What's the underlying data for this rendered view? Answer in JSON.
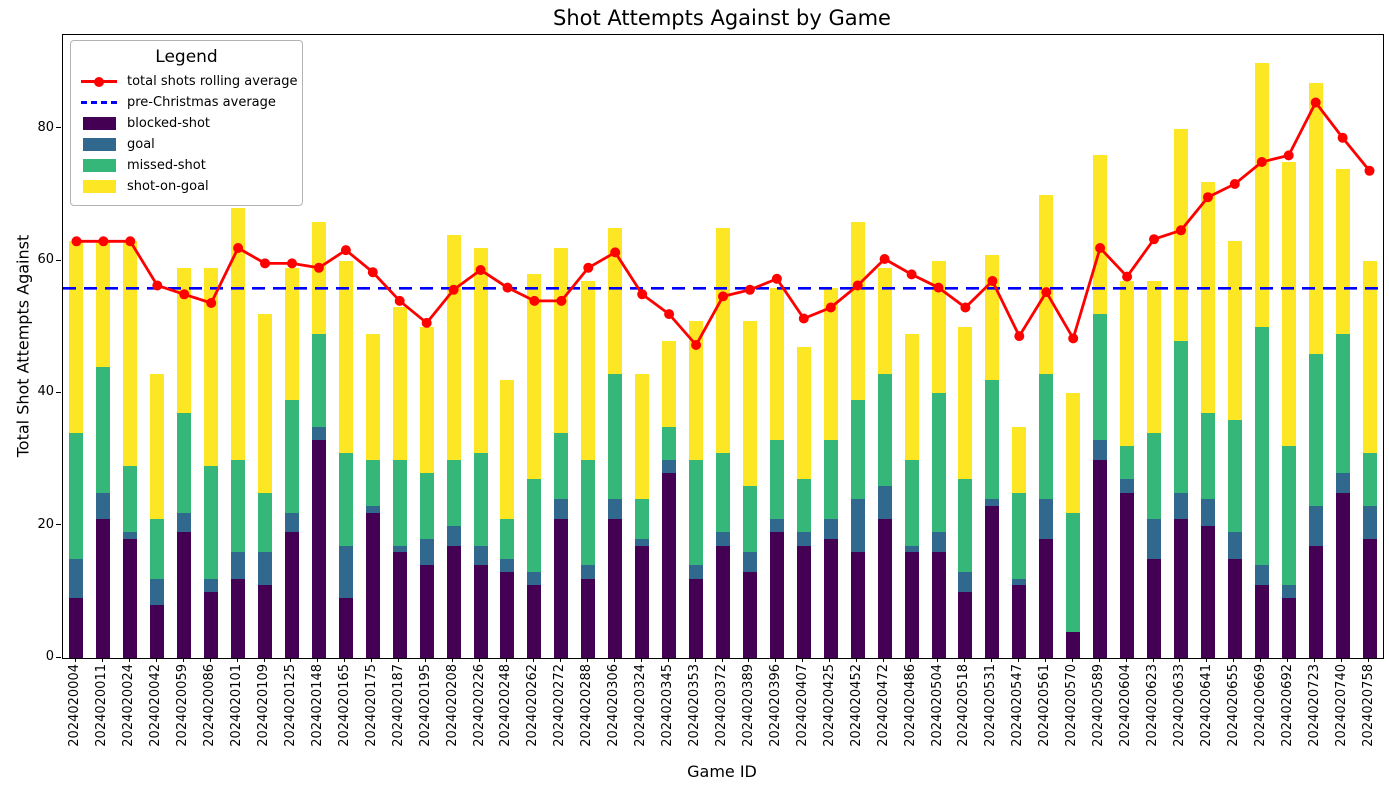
{
  "title": "Shot Attempts Against by Game",
  "legend": {
    "title": "Legend",
    "entries": [
      {
        "label": "total shots rolling average",
        "type": "line-marker",
        "color": "#ff0000"
      },
      {
        "label": "pre-Christmas average",
        "type": "dashed-line",
        "color": "#0000ff"
      },
      {
        "label": "blocked-shot",
        "type": "patch",
        "color": "#440154"
      },
      {
        "label": "goal",
        "type": "patch",
        "color": "#31688e"
      },
      {
        "label": "missed-shot",
        "type": "patch",
        "color": "#35b779"
      },
      {
        "label": "shot-on-goal",
        "type": "patch",
        "color": "#fde725"
      }
    ]
  },
  "chart_data": {
    "type": "bar",
    "stacked": true,
    "title": "Shot Attempts Against by Game",
    "xlabel": "Game ID",
    "ylabel": "Total Shot Attempts Against",
    "ylim": [
      0,
      94.2
    ],
    "yticks": [
      0,
      20,
      40,
      60,
      80
    ],
    "grid": false,
    "legend_position": "upper left",
    "categories": [
      "2024020004",
      "2024020011",
      "2024020024",
      "2024020042",
      "2024020059",
      "2024020086",
      "2024020101",
      "2024020109",
      "2024020125",
      "2024020148",
      "2024020165",
      "2024020175",
      "2024020187",
      "2024020195",
      "2024020208",
      "2024020226",
      "2024020248",
      "2024020262",
      "2024020272",
      "2024020288",
      "2024020306",
      "2024020324",
      "2024020345",
      "2024020353",
      "2024020372",
      "2024020389",
      "2024020396",
      "2024020407",
      "2024020425",
      "2024020452",
      "2024020472",
      "2024020486",
      "2024020504",
      "2024020518",
      "2024020531",
      "2024020547",
      "2024020561",
      "2024020570",
      "2024020589",
      "2024020604",
      "2024020623",
      "2024020633",
      "2024020641",
      "2024020655",
      "2024020669",
      "2024020692",
      "2024020723",
      "2024020740",
      "2024020758"
    ],
    "series": [
      {
        "name": "blocked-shot",
        "color": "#440154",
        "values": [
          9,
          21,
          18,
          8,
          19,
          10,
          12,
          11,
          19,
          33,
          9,
          22,
          16,
          14,
          17,
          14,
          13,
          11,
          21,
          12,
          21,
          17,
          28,
          12,
          17,
          13,
          19,
          17,
          18,
          16,
          21,
          16,
          16,
          10,
          23,
          11,
          18,
          4,
          30,
          25,
          15,
          21,
          20,
          15,
          11,
          9,
          17,
          25,
          18
        ]
      },
      {
        "name": "goal",
        "color": "#31688e",
        "values": [
          6,
          4,
          1,
          4,
          3,
          2,
          4,
          5,
          3,
          2,
          8,
          1,
          1,
          4,
          3,
          3,
          2,
          2,
          3,
          2,
          3,
          1,
          2,
          2,
          2,
          3,
          2,
          2,
          3,
          8,
          5,
          1,
          3,
          3,
          1,
          1,
          6,
          0,
          3,
          2,
          6,
          4,
          4,
          4,
          3,
          2,
          6,
          3,
          5
        ]
      },
      {
        "name": "missed-shot",
        "color": "#35b779",
        "values": [
          19,
          19,
          10,
          9,
          15,
          17,
          14,
          9,
          17,
          14,
          14,
          7,
          13,
          10,
          10,
          14,
          6,
          14,
          10,
          16,
          19,
          6,
          5,
          16,
          12,
          10,
          12,
          8,
          12,
          15,
          17,
          13,
          21,
          14,
          18,
          13,
          19,
          18,
          19,
          5,
          13,
          23,
          13,
          17,
          36,
          21,
          23,
          21,
          8
        ]
      },
      {
        "name": "shot-on-goal",
        "color": "#fde725",
        "values": [
          29,
          19,
          34,
          22,
          22,
          30,
          38,
          27,
          20,
          17,
          29,
          19,
          23,
          22,
          34,
          31,
          21,
          31,
          28,
          27,
          22,
          19,
          13,
          21,
          34,
          25,
          23,
          20,
          23,
          27,
          16,
          19,
          20,
          23,
          19,
          10,
          27,
          18,
          24,
          25,
          23,
          32,
          35,
          27,
          40,
          43,
          41,
          25,
          29
        ]
      }
    ],
    "bar_totals": [
      63,
      63,
      63,
      43,
      59,
      59,
      68,
      52,
      59,
      66,
      60,
      49,
      53,
      50,
      64,
      62,
      42,
      58,
      62,
      57,
      65,
      43,
      48,
      51,
      65,
      51,
      56,
      47,
      56,
      66,
      59,
      49,
      60,
      50,
      61,
      35,
      70,
      40,
      76,
      57,
      57,
      80,
      72,
      63,
      90,
      75,
      87,
      74,
      60
    ],
    "line_series": [
      {
        "name": "total shots rolling average",
        "color": "#ff0000",
        "marker": "circle",
        "values": [
          63,
          63,
          63,
          56.33,
          55,
          53.67,
          62,
          59.67,
          59.67,
          59,
          61.67,
          58.33,
          54,
          50.67,
          55.67,
          58.67,
          56,
          54,
          54,
          59,
          61.33,
          55,
          52,
          47.33,
          54.67,
          55.67,
          57.33,
          51.33,
          53,
          56.33,
          60.33,
          58,
          56,
          53,
          57,
          48.67,
          55.33,
          48.33,
          62,
          57.67,
          63.33,
          64.67,
          69.67,
          71.67,
          75,
          76,
          84,
          78.67,
          73.67
        ]
      }
    ],
    "reference_lines": [
      {
        "name": "pre-Christmas average",
        "color": "#0000ff",
        "style": "dashed",
        "value": 55.9
      }
    ]
  }
}
